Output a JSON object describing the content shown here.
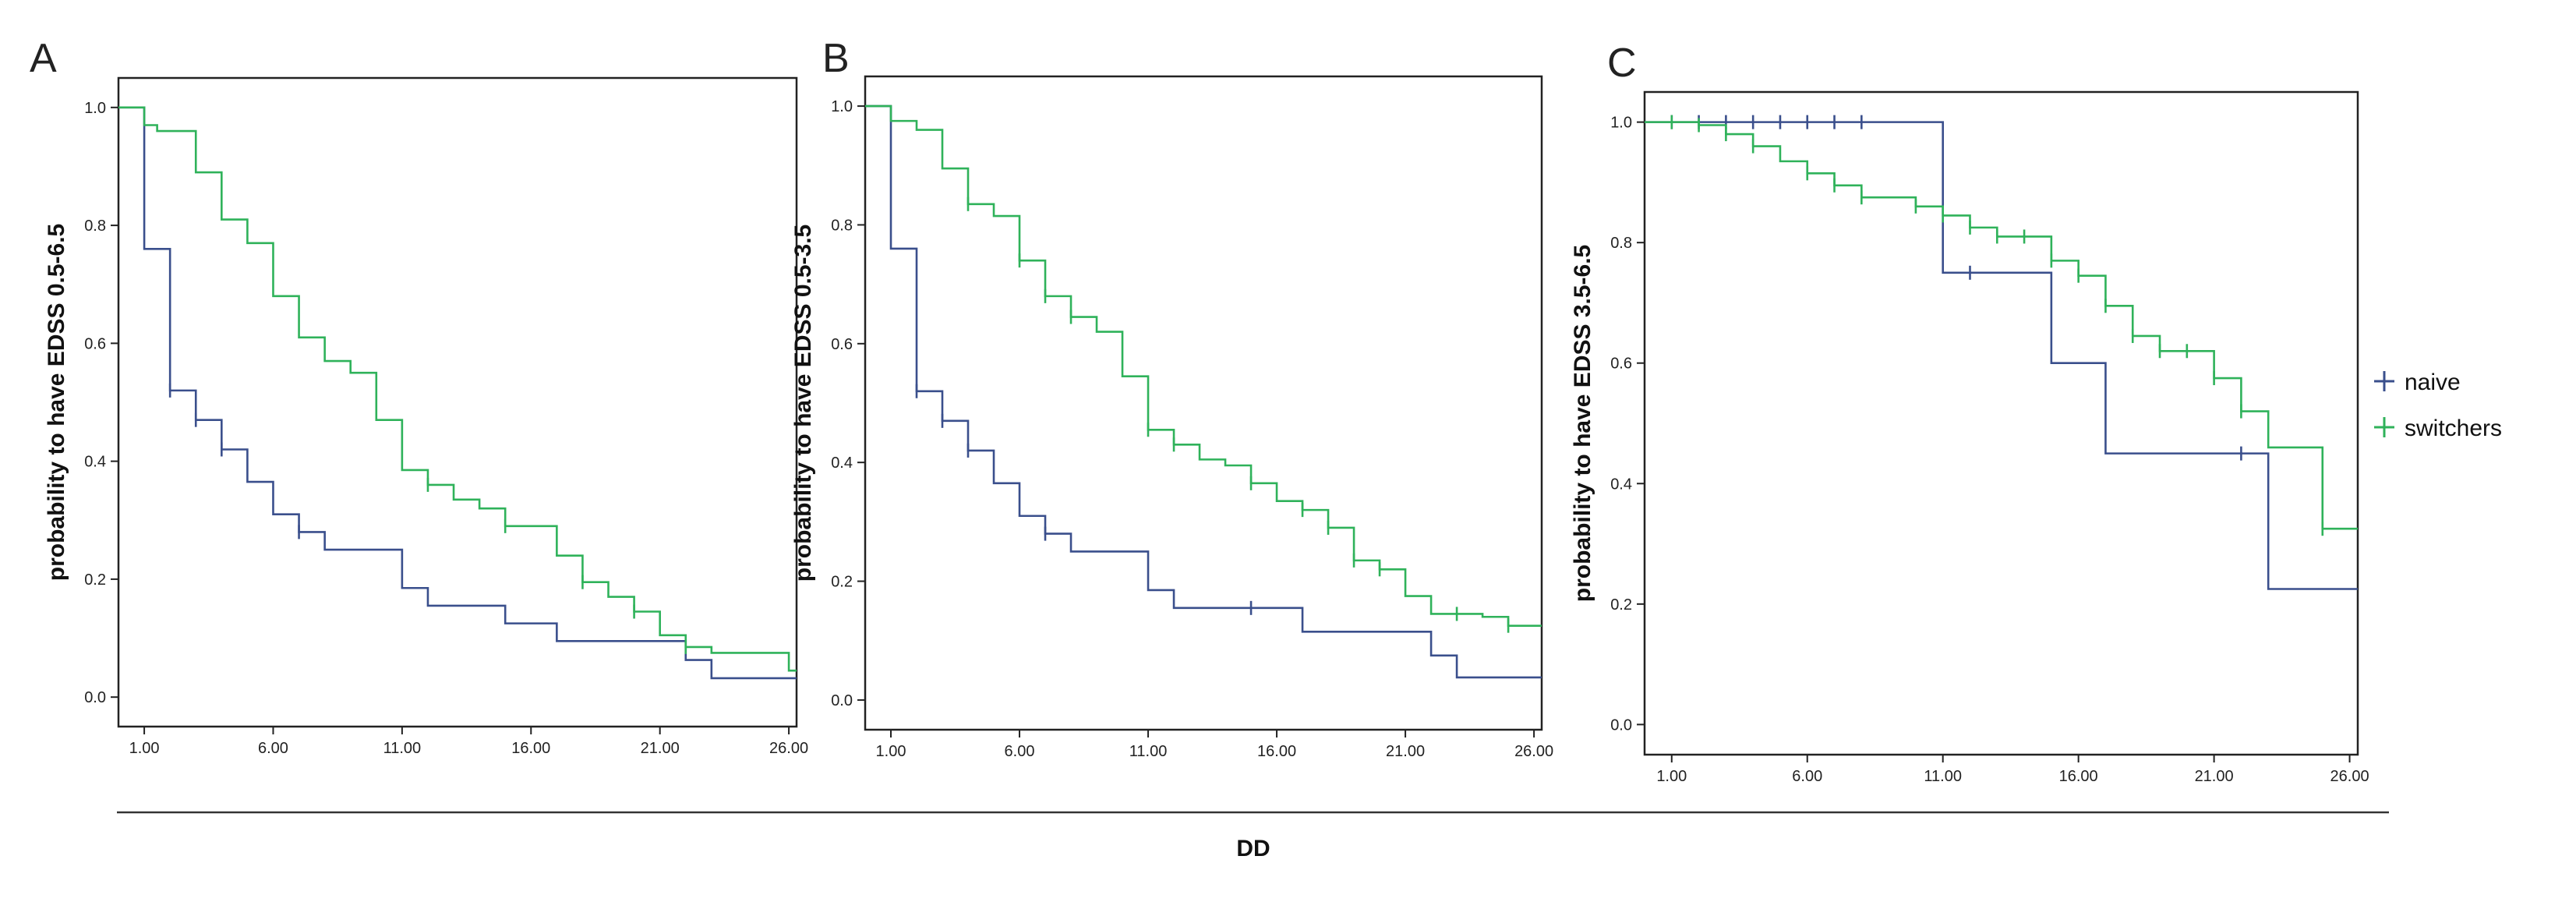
{
  "figure": {
    "shared_xlabel": "DD",
    "legend": {
      "placement": "right of panel C"
    }
  },
  "colors": {
    "naive": "#3a4f8c",
    "switchers": "#2fb25a"
  },
  "chart_data": [
    {
      "type": "line",
      "panel": "A",
      "ylabel": "probability to have EDSS 0.5-6.5",
      "xlim": [
        0,
        26.3
      ],
      "ylim": [
        -0.05,
        1.05
      ],
      "x_ticks": [
        "1.00",
        "6.00",
        "11.00",
        "16.00",
        "21.00",
        "26.00"
      ],
      "x_tick_values": [
        1,
        6,
        11,
        16,
        21,
        26
      ],
      "y_ticks": [
        "0.0",
        "0.2",
        "0.4",
        "0.6",
        "0.8",
        "1.0"
      ],
      "y_tick_values": [
        0,
        0.2,
        0.4,
        0.6,
        0.8,
        1.0
      ],
      "series": [
        {
          "name": "naive",
          "step": [
            [
              0,
              1.0
            ],
            [
              1,
              0.76
            ],
            [
              2,
              0.52
            ],
            [
              3,
              0.47
            ],
            [
              4,
              0.42
            ],
            [
              5,
              0.365
            ],
            [
              6,
              0.31
            ],
            [
              7,
              0.28
            ],
            [
              8,
              0.25
            ],
            [
              11,
              0.185
            ],
            [
              12,
              0.155
            ],
            [
              15,
              0.125
            ],
            [
              17,
              0.095
            ],
            [
              21,
              0.095
            ],
            [
              22,
              0.063
            ],
            [
              23,
              0.032
            ],
            [
              26.3,
              0.032
            ]
          ],
          "censored": [
            [
              2,
              0.52
            ],
            [
              3,
              0.47
            ],
            [
              4,
              0.42
            ],
            [
              7,
              0.28
            ]
          ]
        },
        {
          "name": "switchers",
          "step": [
            [
              0,
              1.0
            ],
            [
              1,
              0.97
            ],
            [
              1.5,
              0.96
            ],
            [
              2,
              0.96
            ],
            [
              3,
              0.89
            ],
            [
              4,
              0.81
            ],
            [
              5,
              0.77
            ],
            [
              6,
              0.68
            ],
            [
              7,
              0.61
            ],
            [
              8,
              0.57
            ],
            [
              9,
              0.55
            ],
            [
              10,
              0.47
            ],
            [
              11,
              0.385
            ],
            [
              12,
              0.36
            ],
            [
              13,
              0.335
            ],
            [
              14,
              0.32
            ],
            [
              15,
              0.29
            ],
            [
              17,
              0.24
            ],
            [
              18,
              0.195
            ],
            [
              19,
              0.17
            ],
            [
              20,
              0.145
            ],
            [
              21,
              0.105
            ],
            [
              22,
              0.085
            ],
            [
              23,
              0.075
            ],
            [
              26,
              0.045
            ],
            [
              26.3,
              0.045
            ]
          ],
          "censored": [
            [
              12,
              0.36
            ],
            [
              15,
              0.29
            ],
            [
              18,
              0.195
            ],
            [
              20,
              0.145
            ],
            [
              22,
              0.085
            ]
          ]
        }
      ]
    },
    {
      "type": "line",
      "panel": "B",
      "ylabel": "probability to have EDSS 0.5-3.5",
      "xlim": [
        0,
        26.3
      ],
      "ylim": [
        -0.05,
        1.05
      ],
      "x_ticks": [
        "1.00",
        "6.00",
        "11.00",
        "16.00",
        "21.00",
        "26.00"
      ],
      "x_tick_values": [
        1,
        6,
        11,
        16,
        21,
        26
      ],
      "y_ticks": [
        "0.0",
        "0.2",
        "0.4",
        "0.6",
        "0.8",
        "1.0"
      ],
      "y_tick_values": [
        0,
        0.2,
        0.4,
        0.6,
        0.8,
        1.0
      ],
      "series": [
        {
          "name": "naive",
          "step": [
            [
              0,
              1.0
            ],
            [
              1,
              0.76
            ],
            [
              2,
              0.52
            ],
            [
              3,
              0.47
            ],
            [
              4,
              0.42
            ],
            [
              5,
              0.365
            ],
            [
              6,
              0.31
            ],
            [
              7,
              0.28
            ],
            [
              8,
              0.25
            ],
            [
              11,
              0.185
            ],
            [
              12,
              0.155
            ],
            [
              16,
              0.155
            ],
            [
              17,
              0.115
            ],
            [
              22,
              0.075
            ],
            [
              23,
              0.038
            ],
            [
              26.3,
              0.038
            ]
          ],
          "censored": [
            [
              2,
              0.52
            ],
            [
              3,
              0.47
            ],
            [
              4,
              0.42
            ],
            [
              7,
              0.28
            ],
            [
              15,
              0.155
            ]
          ]
        },
        {
          "name": "switchers",
          "step": [
            [
              0,
              1.0
            ],
            [
              1,
              0.975
            ],
            [
              2,
              0.96
            ],
            [
              3,
              0.895
            ],
            [
              4,
              0.835
            ],
            [
              5,
              0.815
            ],
            [
              6,
              0.74
            ],
            [
              7,
              0.68
            ],
            [
              8,
              0.645
            ],
            [
              9,
              0.62
            ],
            [
              10,
              0.545
            ],
            [
              11,
              0.455
            ],
            [
              12,
              0.43
            ],
            [
              13,
              0.405
            ],
            [
              14,
              0.395
            ],
            [
              15,
              0.365
            ],
            [
              16,
              0.335
            ],
            [
              17,
              0.32
            ],
            [
              18,
              0.29
            ],
            [
              19,
              0.235
            ],
            [
              20,
              0.22
            ],
            [
              21,
              0.175
            ],
            [
              22,
              0.145
            ],
            [
              24,
              0.14
            ],
            [
              25,
              0.125
            ],
            [
              26.3,
              0.125
            ]
          ],
          "censored": [
            [
              4,
              0.835
            ],
            [
              6,
              0.74
            ],
            [
              7,
              0.68
            ],
            [
              8,
              0.645
            ],
            [
              11,
              0.455
            ],
            [
              12,
              0.43
            ],
            [
              15,
              0.365
            ],
            [
              17,
              0.32
            ],
            [
              18,
              0.29
            ],
            [
              19,
              0.235
            ],
            [
              20,
              0.22
            ],
            [
              23,
              0.145
            ],
            [
              25,
              0.125
            ]
          ]
        }
      ]
    },
    {
      "type": "line",
      "panel": "C",
      "ylabel": "probability to have EDSS 3.5-6.5",
      "xlim": [
        0,
        26.3
      ],
      "ylim": [
        -0.05,
        1.05
      ],
      "x_ticks": [
        "1.00",
        "6.00",
        "11.00",
        "16.00",
        "21.00",
        "26.00"
      ],
      "x_tick_values": [
        1,
        6,
        11,
        16,
        21,
        26
      ],
      "y_ticks": [
        "0.0",
        "0.2",
        "0.4",
        "0.6",
        "0.8",
        "1.0"
      ],
      "y_tick_values": [
        0,
        0.2,
        0.4,
        0.6,
        0.8,
        1.0
      ],
      "legend": [
        "naive",
        "switchers"
      ],
      "series": [
        {
          "name": "naive",
          "step": [
            [
              0,
              1.0
            ],
            [
              11,
              0.75
            ],
            [
              15,
              0.6
            ],
            [
              17,
              0.45
            ],
            [
              23,
              0.225
            ],
            [
              26.3,
              0.225
            ]
          ],
          "censored": [
            [
              1,
              1.0
            ],
            [
              2,
              1.0
            ],
            [
              3,
              1.0
            ],
            [
              4,
              1.0
            ],
            [
              5,
              1.0
            ],
            [
              6,
              1.0
            ],
            [
              7,
              1.0
            ],
            [
              8,
              1.0
            ],
            [
              12,
              0.75
            ],
            [
              22,
              0.45
            ]
          ]
        },
        {
          "name": "switchers",
          "step": [
            [
              0,
              1.0
            ],
            [
              2,
              0.995
            ],
            [
              3,
              0.98
            ],
            [
              4,
              0.96
            ],
            [
              5,
              0.935
            ],
            [
              6,
              0.915
            ],
            [
              7,
              0.895
            ],
            [
              8,
              0.875
            ],
            [
              10,
              0.86
            ],
            [
              11,
              0.845
            ],
            [
              12,
              0.825
            ],
            [
              13,
              0.81
            ],
            [
              15,
              0.77
            ],
            [
              16,
              0.745
            ],
            [
              17,
              0.695
            ],
            [
              18,
              0.645
            ],
            [
              19,
              0.62
            ],
            [
              21,
              0.575
            ],
            [
              22,
              0.52
            ],
            [
              23,
              0.46
            ],
            [
              25,
              0.325
            ],
            [
              26.3,
              0.325
            ]
          ],
          "censored": [
            [
              1,
              1.0
            ],
            [
              2,
              0.995
            ],
            [
              3,
              0.98
            ],
            [
              4,
              0.96
            ],
            [
              6,
              0.915
            ],
            [
              7,
              0.895
            ],
            [
              8,
              0.875
            ],
            [
              10,
              0.86
            ],
            [
              11,
              0.845
            ],
            [
              12,
              0.825
            ],
            [
              13,
              0.81
            ],
            [
              14,
              0.81
            ],
            [
              15,
              0.77
            ],
            [
              16,
              0.745
            ],
            [
              17,
              0.695
            ],
            [
              18,
              0.645
            ],
            [
              19,
              0.62
            ],
            [
              20,
              0.62
            ],
            [
              21,
              0.575
            ],
            [
              22,
              0.52
            ],
            [
              25,
              0.325
            ]
          ]
        }
      ]
    }
  ]
}
